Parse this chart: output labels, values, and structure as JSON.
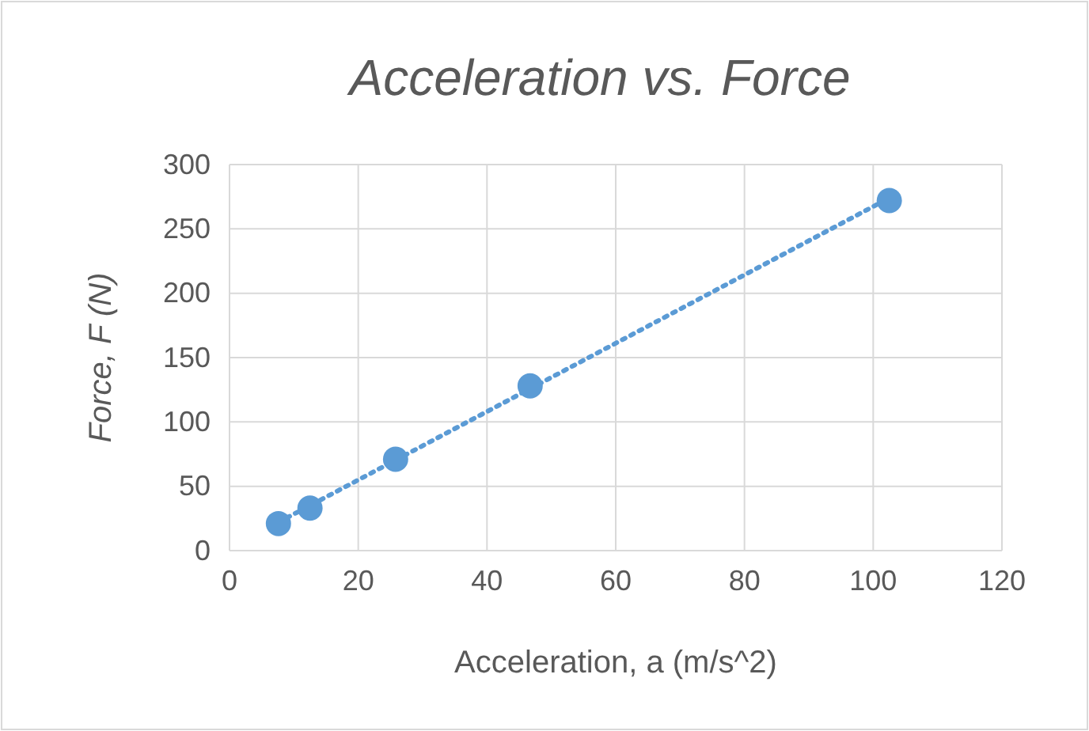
{
  "chart_data": {
    "type": "scatter",
    "title": "Acceleration vs. Force",
    "xlabel": "Acceleration, a (m/s^2)",
    "ylabel": "Force, F (N)",
    "xlim": [
      0,
      120
    ],
    "xticks": [
      0,
      20,
      40,
      60,
      80,
      100,
      120
    ],
    "ylim": [
      0,
      300
    ],
    "yticks": [
      0,
      50,
      100,
      150,
      200,
      250,
      300
    ],
    "grid": true,
    "marker": "circle",
    "series": [
      {
        "color": "#5b9bd5",
        "x": [
          7.6,
          12.5,
          25.8,
          46.7,
          102.5
        ],
        "values": [
          21,
          33,
          71,
          128,
          272
        ]
      },
      {
        "type": "line",
        "color": "#5b9bd5",
        "line_style": "dotted",
        "marker": "none",
        "x": [
          7.6,
          102.5
        ],
        "values": [
          22,
          274
        ]
      }
    ]
  }
}
